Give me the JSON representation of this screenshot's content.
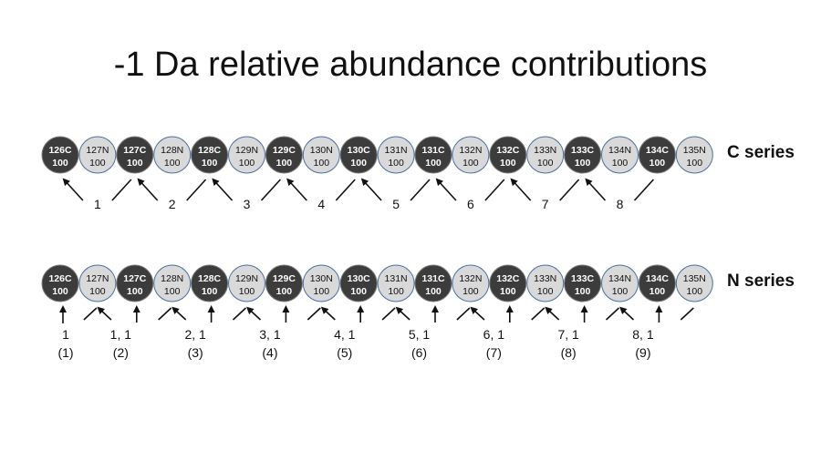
{
  "title": "-1 Da relative abundance contributions",
  "colors": {
    "dark_channel": "#3c3c3c",
    "light_channel": "#d9d9d9",
    "light_outline": "#4a6fa5",
    "ink": "#111111"
  },
  "channels": [
    {
      "name": "126C",
      "value": "100",
      "type": "C"
    },
    {
      "name": "127N",
      "value": "100",
      "type": "N"
    },
    {
      "name": "127C",
      "value": "100",
      "type": "C"
    },
    {
      "name": "128N",
      "value": "100",
      "type": "N"
    },
    {
      "name": "128C",
      "value": "100",
      "type": "C"
    },
    {
      "name": "129N",
      "value": "100",
      "type": "N"
    },
    {
      "name": "129C",
      "value": "100",
      "type": "C"
    },
    {
      "name": "130N",
      "value": "100",
      "type": "N"
    },
    {
      "name": "130C",
      "value": "100",
      "type": "C"
    },
    {
      "name": "131N",
      "value": "100",
      "type": "N"
    },
    {
      "name": "131C",
      "value": "100",
      "type": "C"
    },
    {
      "name": "132N",
      "value": "100",
      "type": "N"
    },
    {
      "name": "132C",
      "value": "100",
      "type": "C"
    },
    {
      "name": "133N",
      "value": "100",
      "type": "N"
    },
    {
      "name": "133C",
      "value": "100",
      "type": "C"
    },
    {
      "name": "134N",
      "value": "100",
      "type": "N"
    },
    {
      "name": "134C",
      "value": "100",
      "type": "C"
    },
    {
      "name": "135N",
      "value": "100",
      "type": "N"
    }
  ],
  "c_series": {
    "label": "C series",
    "contributions": [
      "1",
      "2",
      "3",
      "4",
      "5",
      "6",
      "7",
      "8"
    ]
  },
  "n_series": {
    "label": "N series",
    "contributions": [
      {
        "line1": "1",
        "line2": "(1)"
      },
      {
        "line1": "1, 1",
        "line2": "(2)"
      },
      {
        "line1": "2, 1",
        "line2": "(3)"
      },
      {
        "line1": "3, 1",
        "line2": "(4)"
      },
      {
        "line1": "4, 1",
        "line2": "(5)"
      },
      {
        "line1": "5, 1",
        "line2": "(6)"
      },
      {
        "line1": "6, 1",
        "line2": "(7)"
      },
      {
        "line1": "7, 1",
        "line2": "(8)"
      },
      {
        "line1": "8, 1",
        "line2": "(9)"
      }
    ]
  }
}
